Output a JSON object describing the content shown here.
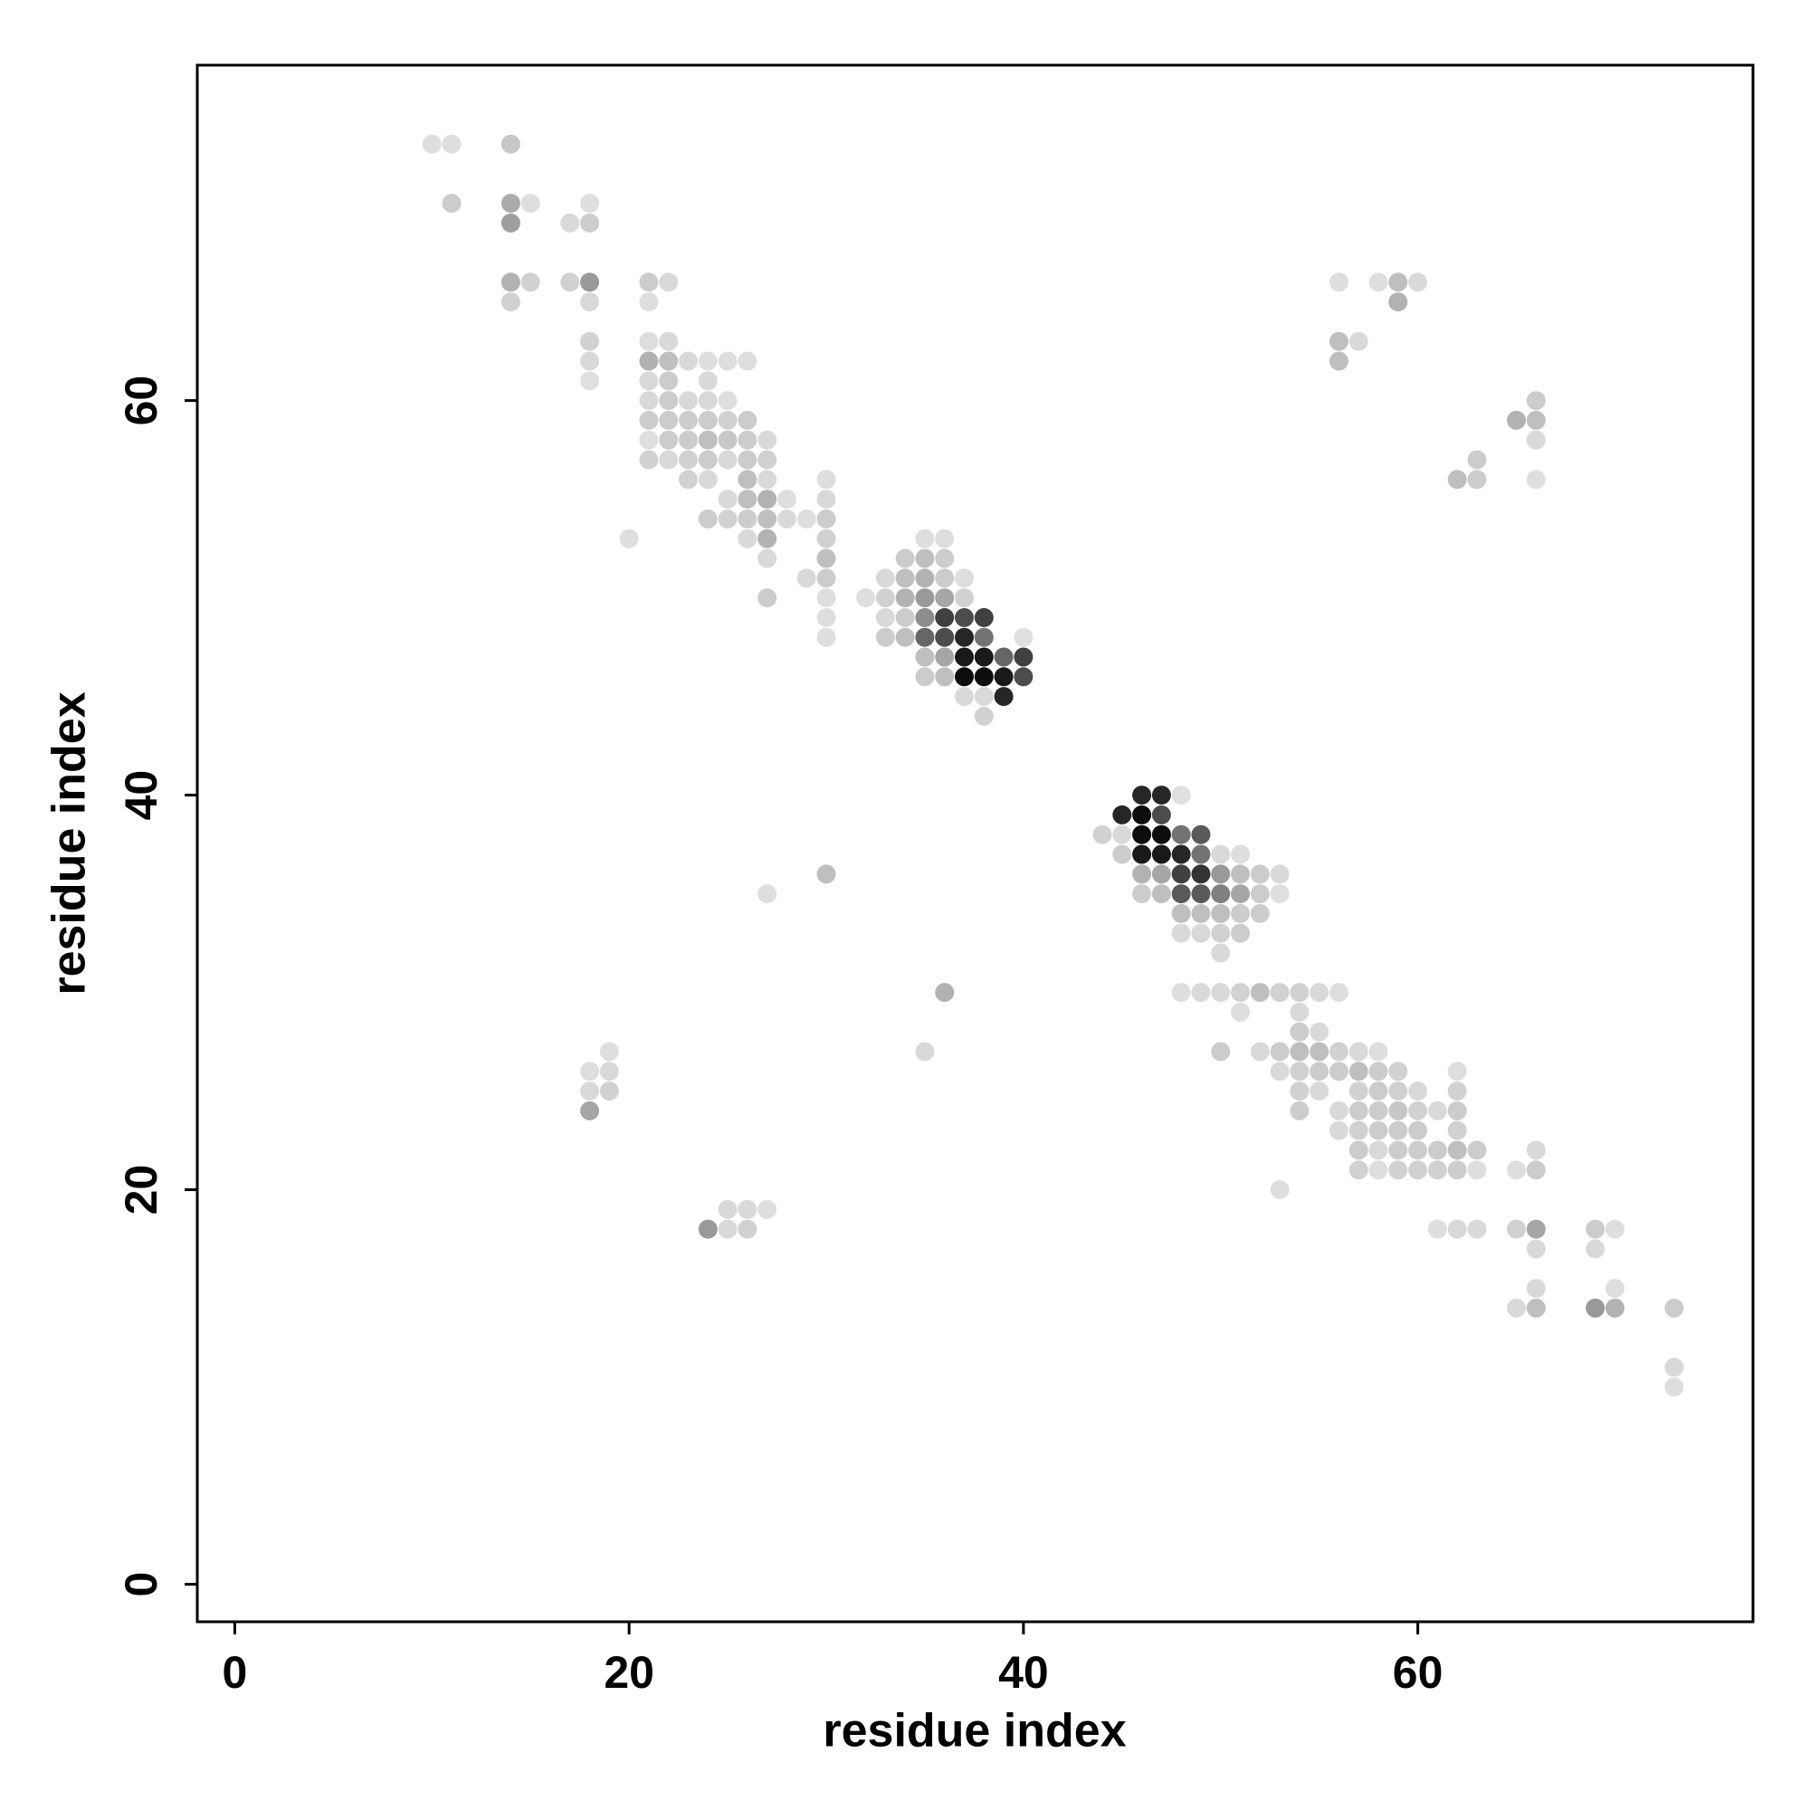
{
  "chart_data": {
    "type": "scatter",
    "xlabel": "residue index",
    "ylabel": "residue index",
    "xlim": [
      -1.9,
      77
    ],
    "ylim": [
      -1.9,
      77
    ],
    "xticks": [
      0,
      20,
      40,
      60
    ],
    "yticks": [
      0,
      20,
      40,
      60
    ],
    "grid": false,
    "color": "#000000",
    "x": [
      10,
      11,
      14,
      11,
      14,
      15,
      18,
      14,
      17,
      18,
      14,
      15,
      17,
      18,
      21,
      22,
      56,
      58,
      59,
      60,
      14,
      18,
      21,
      59,
      18,
      21,
      22,
      56,
      57,
      18,
      21,
      22,
      23,
      24,
      25,
      26,
      56,
      18,
      21,
      22,
      24,
      21,
      22,
      23,
      24,
      25,
      66,
      21,
      22,
      23,
      24,
      25,
      26,
      65,
      66,
      21,
      22,
      23,
      24,
      25,
      26,
      27,
      66,
      21,
      22,
      23,
      24,
      25,
      26,
      27,
      63,
      23,
      24,
      26,
      27,
      30,
      62,
      63,
      66,
      25,
      26,
      27,
      28,
      30,
      24,
      25,
      26,
      27,
      28,
      29,
      30,
      20,
      26,
      27,
      30,
      35,
      36,
      27,
      30,
      34,
      35,
      36,
      29,
      30,
      33,
      34,
      35,
      36,
      37,
      27,
      30,
      32,
      33,
      34,
      35,
      36,
      37,
      30,
      33,
      34,
      35,
      36,
      37,
      38,
      30,
      33,
      34,
      35,
      36,
      37,
      38,
      40,
      35,
      36,
      37,
      38,
      39,
      40,
      35,
      36,
      37,
      38,
      39,
      40,
      37,
      38,
      39,
      38,
      46,
      47,
      48,
      45,
      46,
      47,
      44,
      45,
      46,
      47,
      48,
      49,
      45,
      46,
      47,
      48,
      49,
      50,
      51,
      30,
      46,
      47,
      48,
      49,
      50,
      51,
      52,
      53,
      27,
      46,
      47,
      48,
      49,
      50,
      51,
      52,
      53,
      48,
      49,
      50,
      51,
      52,
      48,
      49,
      50,
      51,
      50,
      36,
      48,
      49,
      50,
      51,
      52,
      53,
      54,
      55,
      56,
      51,
      54,
      54,
      55,
      19,
      35,
      50,
      52,
      53,
      54,
      55,
      56,
      57,
      58,
      18,
      19,
      53,
      54,
      55,
      56,
      57,
      58,
      59,
      62,
      18,
      19,
      54,
      55,
      57,
      58,
      59,
      60,
      62,
      18,
      54,
      56,
      57,
      58,
      59,
      60,
      61,
      62,
      56,
      57,
      58,
      59,
      60,
      62,
      57,
      58,
      59,
      60,
      61,
      62,
      63,
      66,
      57,
      58,
      59,
      60,
      61,
      62,
      63,
      65,
      66,
      53,
      25,
      26,
      27,
      24,
      25,
      26,
      61,
      62,
      63,
      65,
      66,
      69,
      70,
      66,
      69,
      66,
      70,
      65,
      66,
      69,
      70,
      73,
      73,
      73
    ],
    "y": [
      73,
      73,
      73,
      70,
      70,
      70,
      70,
      69,
      69,
      69,
      66,
      66,
      66,
      66,
      66,
      66,
      66,
      66,
      66,
      66,
      65,
      65,
      65,
      65,
      63,
      63,
      63,
      63,
      63,
      62,
      62,
      62,
      62,
      62,
      62,
      62,
      62,
      61,
      61,
      61,
      61,
      60,
      60,
      60,
      60,
      60,
      60,
      59,
      59,
      59,
      59,
      59,
      59,
      59,
      59,
      58,
      58,
      58,
      58,
      58,
      58,
      58,
      58,
      57,
      57,
      57,
      57,
      57,
      57,
      57,
      57,
      56,
      56,
      56,
      56,
      56,
      56,
      56,
      56,
      55,
      55,
      55,
      55,
      55,
      54,
      54,
      54,
      54,
      54,
      54,
      54,
      53,
      53,
      53,
      53,
      53,
      53,
      52,
      52,
      52,
      52,
      52,
      51,
      51,
      51,
      51,
      51,
      51,
      51,
      50,
      50,
      50,
      50,
      50,
      50,
      50,
      50,
      49,
      49,
      49,
      49,
      49,
      49,
      49,
      48,
      48,
      48,
      48,
      48,
      48,
      48,
      48,
      47,
      47,
      47,
      47,
      47,
      47,
      46,
      46,
      46,
      46,
      46,
      46,
      45,
      45,
      45,
      44,
      40,
      40,
      40,
      39,
      39,
      39,
      38,
      38,
      38,
      38,
      38,
      38,
      37,
      37,
      37,
      37,
      37,
      37,
      37,
      36,
      36,
      36,
      36,
      36,
      36,
      36,
      36,
      36,
      35,
      35,
      35,
      35,
      35,
      35,
      35,
      35,
      35,
      34,
      34,
      34,
      34,
      34,
      33,
      33,
      33,
      33,
      32,
      30,
      30,
      30,
      30,
      30,
      30,
      30,
      30,
      30,
      30,
      29,
      29,
      28,
      28,
      27,
      27,
      27,
      27,
      27,
      27,
      27,
      27,
      27,
      27,
      26,
      26,
      26,
      26,
      26,
      26,
      26,
      26,
      26,
      26,
      25,
      25,
      25,
      25,
      25,
      25,
      25,
      25,
      25,
      24,
      24,
      24,
      24,
      24,
      24,
      24,
      24,
      24,
      23,
      23,
      23,
      23,
      23,
      23,
      22,
      22,
      22,
      22,
      22,
      22,
      22,
      22,
      21,
      21,
      21,
      21,
      21,
      21,
      21,
      21,
      21,
      20,
      19,
      19,
      19,
      18,
      18,
      18,
      18,
      18,
      18,
      18,
      18,
      18,
      18,
      17,
      17,
      15,
      15,
      14,
      14,
      14,
      14,
      14,
      11,
      10
    ],
    "shade": [
      0.13,
      0.13,
      0.22,
      0.2,
      0.33,
      0.13,
      0.13,
      0.38,
      0.15,
      0.2,
      0.3,
      0.18,
      0.18,
      0.4,
      0.2,
      0.15,
      0.13,
      0.13,
      0.25,
      0.15,
      0.18,
      0.15,
      0.13,
      0.3,
      0.18,
      0.13,
      0.15,
      0.25,
      0.15,
      0.15,
      0.3,
      0.25,
      0.15,
      0.13,
      0.13,
      0.13,
      0.25,
      0.12,
      0.15,
      0.2,
      0.15,
      0.15,
      0.2,
      0.15,
      0.15,
      0.13,
      0.2,
      0.2,
      0.2,
      0.2,
      0.2,
      0.18,
      0.2,
      0.3,
      0.25,
      0.13,
      0.2,
      0.2,
      0.25,
      0.22,
      0.2,
      0.15,
      0.15,
      0.18,
      0.15,
      0.18,
      0.2,
      0.15,
      0.2,
      0.18,
      0.2,
      0.18,
      0.15,
      0.25,
      0.15,
      0.13,
      0.25,
      0.2,
      0.13,
      0.15,
      0.25,
      0.3,
      0.13,
      0.15,
      0.2,
      0.18,
      0.2,
      0.25,
      0.15,
      0.13,
      0.2,
      0.13,
      0.15,
      0.3,
      0.18,
      0.13,
      0.13,
      0.15,
      0.25,
      0.2,
      0.25,
      0.2,
      0.15,
      0.2,
      0.15,
      0.25,
      0.3,
      0.2,
      0.13,
      0.2,
      0.13,
      0.13,
      0.18,
      0.3,
      0.4,
      0.35,
      0.18,
      0.13,
      0.15,
      0.2,
      0.45,
      0.75,
      0.7,
      0.75,
      0.13,
      0.2,
      0.25,
      0.6,
      0.7,
      0.85,
      0.55,
      0.12,
      0.25,
      0.35,
      0.9,
      0.9,
      0.6,
      0.75,
      0.2,
      0.25,
      0.95,
      0.95,
      0.9,
      0.7,
      0.15,
      0.15,
      0.85,
      0.18,
      0.85,
      0.85,
      0.12,
      0.85,
      0.95,
      0.7,
      0.18,
      0.15,
      0.95,
      0.95,
      0.55,
      0.65,
      0.2,
      0.9,
      0.9,
      0.85,
      0.55,
      0.15,
      0.13,
      0.25,
      0.3,
      0.35,
      0.75,
      0.8,
      0.4,
      0.25,
      0.2,
      0.15,
      0.13,
      0.2,
      0.25,
      0.65,
      0.65,
      0.5,
      0.35,
      0.2,
      0.13,
      0.25,
      0.25,
      0.25,
      0.2,
      0.2,
      0.15,
      0.15,
      0.18,
      0.2,
      0.15,
      0.3,
      0.13,
      0.15,
      0.15,
      0.18,
      0.25,
      0.18,
      0.18,
      0.15,
      0.13,
      0.13,
      0.15,
      0.2,
      0.15,
      0.13,
      0.15,
      0.2,
      0.15,
      0.2,
      0.25,
      0.25,
      0.18,
      0.15,
      0.13,
      0.13,
      0.15,
      0.15,
      0.18,
      0.2,
      0.2,
      0.25,
      0.2,
      0.18,
      0.13,
      0.15,
      0.18,
      0.18,
      0.15,
      0.18,
      0.2,
      0.18,
      0.15,
      0.18,
      0.35,
      0.2,
      0.15,
      0.2,
      0.2,
      0.22,
      0.18,
      0.15,
      0.2,
      0.15,
      0.18,
      0.2,
      0.2,
      0.2,
      0.18,
      0.2,
      0.15,
      0.2,
      0.2,
      0.2,
      0.25,
      0.2,
      0.15,
      0.18,
      0.13,
      0.18,
      0.18,
      0.18,
      0.2,
      0.13,
      0.13,
      0.2,
      0.13,
      0.15,
      0.15,
      0.13,
      0.4,
      0.15,
      0.18,
      0.13,
      0.15,
      0.15,
      0.18,
      0.35,
      0.2,
      0.13,
      0.15,
      0.15,
      0.15,
      0.13,
      0.15,
      0.25,
      0.4,
      0.3,
      0.2,
      0.15,
      0.13
    ]
  }
}
